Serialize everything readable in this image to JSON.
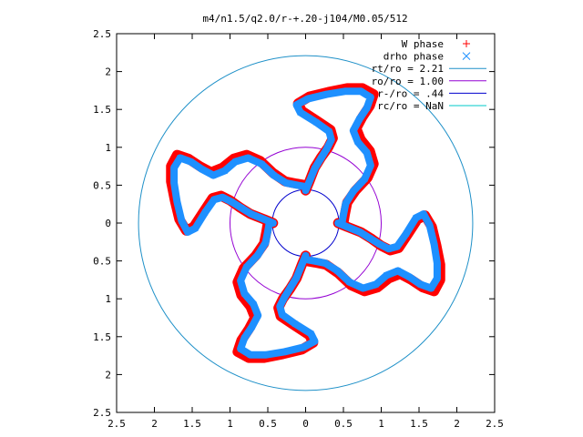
{
  "chart_data": {
    "type": "scatter",
    "title": "m4/n1.5/q2.0/r-+.20-j104/M0.05/512",
    "xlabel": "",
    "ylabel": "",
    "xlim": [
      -2.5,
      2.5
    ],
    "ylim": [
      -2.5,
      2.5
    ],
    "x_tick_values": [
      -2.5,
      -2,
      -1.5,
      -1,
      -0.5,
      0,
      0.5,
      1,
      1.5,
      2,
      2.5
    ],
    "x_tick_labels": [
      "2.5",
      "2",
      "1.5",
      "1",
      "0.5",
      "0",
      "0.5",
      "1",
      "1.5",
      "2",
      "2.5"
    ],
    "y_tick_values": [
      2.5,
      2,
      1.5,
      1,
      0.5,
      0,
      -0.5,
      -1,
      -1.5,
      -2,
      -2.5
    ],
    "y_tick_labels": [
      "2.5",
      "2",
      "1.5",
      "1",
      "0.5",
      "0",
      "0.5",
      "1",
      "1.5",
      "2",
      "2.5"
    ],
    "grid": false,
    "legend_position": "top-right",
    "legend": [
      {
        "label": "W phase",
        "kind": "marker",
        "marker": "plus",
        "color": "#ff0000"
      },
      {
        "label": "drho phase",
        "kind": "marker",
        "marker": "cross",
        "color": "#1e90ff"
      },
      {
        "label": "rt/ro = 2.21",
        "kind": "line",
        "color": "#1e90c8"
      },
      {
        "label": "ro/ro = 1.00",
        "kind": "line",
        "color": "#9400d3"
      },
      {
        "label": "r-/ro = .44",
        "kind": "line",
        "color": "#0000cd"
      },
      {
        "label": "rc/ro = NaN",
        "kind": "line",
        "color": "#00c8c8"
      }
    ],
    "circles": [
      {
        "name": "rt/ro",
        "radius": 2.21,
        "color": "#1e90c8"
      },
      {
        "name": "ro/ro",
        "radius": 1.0,
        "color": "#9400d3"
      },
      {
        "name": "r-/ro",
        "radius": 0.44,
        "color": "#0000cd"
      }
    ],
    "series": [
      {
        "name": "W phase",
        "color": "#ff0000",
        "points": [
          [
            0.0,
            0.43
          ],
          [
            0.05,
            0.55
          ],
          [
            0.12,
            0.73
          ],
          [
            0.2,
            0.86
          ],
          [
            0.3,
            1.0
          ],
          [
            0.36,
            1.12
          ],
          [
            0.33,
            1.23
          ],
          [
            0.15,
            1.35
          ],
          [
            -0.05,
            1.48
          ],
          [
            -0.1,
            1.58
          ],
          [
            0.05,
            1.67
          ],
          [
            0.3,
            1.73
          ],
          [
            0.55,
            1.78
          ],
          [
            0.75,
            1.78
          ],
          [
            0.9,
            1.7
          ],
          [
            0.85,
            1.55
          ],
          [
            0.75,
            1.4
          ],
          [
            0.67,
            1.25
          ],
          [
            0.73,
            1.1
          ],
          [
            0.85,
            0.95
          ],
          [
            0.9,
            0.78
          ],
          [
            0.82,
            0.6
          ],
          [
            0.66,
            0.43
          ],
          [
            0.55,
            0.27
          ],
          [
            0.52,
            0.12
          ],
          [
            0.5,
            0.0
          ]
        ]
      },
      {
        "name": "drho phase",
        "color": "#1e90ff",
        "points": [
          [
            0.0,
            0.43
          ],
          [
            0.05,
            0.55
          ],
          [
            0.12,
            0.72
          ],
          [
            0.2,
            0.85
          ],
          [
            0.28,
            0.98
          ],
          [
            0.34,
            1.1
          ],
          [
            0.31,
            1.21
          ],
          [
            0.14,
            1.33
          ],
          [
            -0.07,
            1.46
          ],
          [
            -0.12,
            1.56
          ],
          [
            0.03,
            1.64
          ],
          [
            0.28,
            1.7
          ],
          [
            0.53,
            1.74
          ],
          [
            0.73,
            1.74
          ],
          [
            0.86,
            1.66
          ],
          [
            0.81,
            1.52
          ],
          [
            0.71,
            1.37
          ],
          [
            0.63,
            1.22
          ],
          [
            0.69,
            1.07
          ],
          [
            0.81,
            0.93
          ],
          [
            0.86,
            0.76
          ],
          [
            0.78,
            0.58
          ],
          [
            0.63,
            0.42
          ],
          [
            0.53,
            0.26
          ],
          [
            0.5,
            0.11
          ],
          [
            0.48,
            0.0
          ]
        ]
      }
    ]
  }
}
